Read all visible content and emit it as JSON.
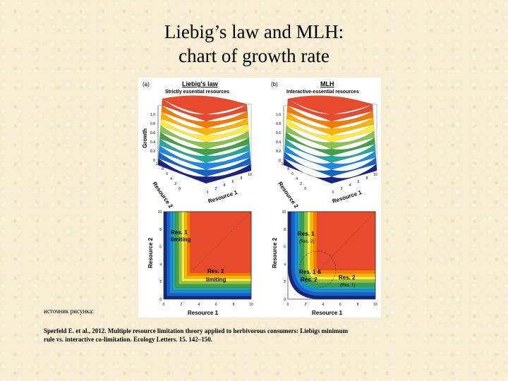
{
  "title": {
    "line1": "Liebig’s law and MLH:",
    "line2": "chart of growth rate"
  },
  "figure": {
    "panel_a": {
      "letter": "(a)",
      "heading": "Liebig's law",
      "subheading": "Strictly essential resources",
      "z_axis_label": "Growth",
      "z_ticks": [
        "1.0",
        "0.8",
        "0.6",
        "0.4",
        "0.2",
        "0"
      ],
      "res2_ticks": [
        "10",
        "8",
        "6",
        "4",
        "2",
        "0"
      ],
      "res1_ticks": [
        "0",
        "2",
        "4",
        "6",
        "8",
        "10"
      ],
      "res1_label": "Resource 1",
      "res2_label": "Resource 2"
    },
    "panel_b": {
      "letter": "(b)",
      "heading": "MLH",
      "subheading": "Interactive-essential resources",
      "z_ticks": [
        "1.0",
        "0.8",
        "0.6",
        "0.4",
        "0.2",
        "0"
      ],
      "res2_ticks": [
        "10",
        "8",
        "6",
        "4",
        "2",
        "0"
      ],
      "res1_ticks": [
        "0",
        "2",
        "4",
        "6",
        "8",
        "10"
      ],
      "res1_label": "Resource 1",
      "res2_label": "Resource 2"
    },
    "panel_c": {
      "y_label": "Resource 2",
      "x_label": "Resource 1",
      "x_ticks": [
        "0",
        "2",
        "4",
        "6",
        "8",
        "10"
      ],
      "y_ticks": [
        "0",
        "2",
        "4",
        "6",
        "8",
        "10"
      ],
      "region1_l1": "Res. 1",
      "region1_l2": "limiting",
      "region2_l1": "Res. 2",
      "region2_l2": "limiting"
    },
    "panel_d": {
      "y_label": "Resource 2",
      "x_label": "Resource 1",
      "x_ticks": [
        "0",
        "2",
        "4",
        "6",
        "8",
        "10"
      ],
      "y_ticks": [
        "0",
        "2",
        "4",
        "6",
        "8",
        "10"
      ],
      "region1_l1": "Res. 1",
      "region1_sub": "(Res. 2)",
      "region3_l1": "Res. 1 &",
      "region3_l2": "Res. 2",
      "region2_l1": "Res. 2",
      "region2_sub": "(Res. 1)"
    },
    "colors": {
      "band_colors": [
        "#1a237e",
        "#1565c0",
        "#1e88e5",
        "#26a69a",
        "#43a047",
        "#8bc34a",
        "#ffeb3b",
        "#ffb300",
        "#f57c00",
        "#e84a2e"
      ]
    }
  },
  "source_label": "источник рисунка:",
  "citation": "Sperfeld E. et al., 2012. Multiple resource limitation theory applied to herbivorous consumers: Liebigs minimum rule vs. interactive co-limitation. Ecology Letters. 15. 142–150."
}
